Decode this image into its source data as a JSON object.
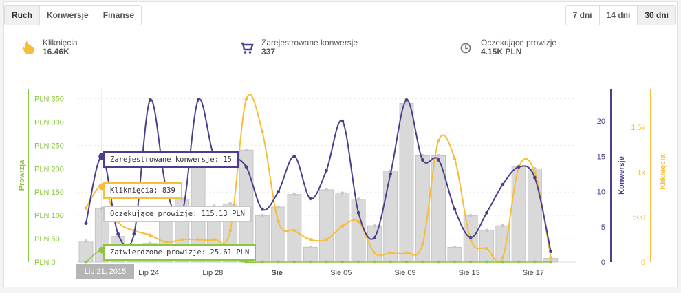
{
  "tabs": {
    "items": [
      {
        "label": "Ruch",
        "active": true
      },
      {
        "label": "Konwersje",
        "active": false
      },
      {
        "label": "Finanse",
        "active": false
      }
    ]
  },
  "ranges": {
    "items": [
      {
        "label": "7 dni",
        "active": false
      },
      {
        "label": "14 dni",
        "active": false
      },
      {
        "label": "30 dni",
        "active": true
      }
    ]
  },
  "stats": {
    "clicks": {
      "label": "Kliknięcia",
      "value": "16.46K",
      "icon": "pointer-hand-icon"
    },
    "conversions": {
      "label": "Zarejestrowane konwersje",
      "value": "337",
      "icon": "shopping-cart-icon"
    },
    "pending": {
      "label": "Oczekujące prowizje",
      "value": "4.15K PLN",
      "icon": "clock-icon"
    }
  },
  "tooltips": {
    "conversions": "Zarejestrowane konwersje: 15",
    "clicks": "Kliknięcia: 839",
    "pending": "Oczekujące prowizje: 115.13 PLN",
    "approved": "Zatwierdzone prowizje: 25.61 PLN"
  },
  "hover_date": "Lip 21, 2015",
  "colors": {
    "green": "#8cc63f",
    "purple": "#4b3f8c",
    "orange": "#f7bd3b",
    "bar": "#d9d9d9",
    "bar_stroke": "#bdbdbd"
  },
  "chart_data": {
    "type": "bar",
    "x_tick_labels": [
      "Lip 24",
      "Lip 28",
      "Sie",
      "Sie 05",
      "Sie 09",
      "Sie 13",
      "Sie 17"
    ],
    "x_ticks_bold": [
      "Sie"
    ],
    "left_axis": {
      "label": "Prowizja",
      "ticks": [
        "PLN 0",
        "PLN 50",
        "PLN 100",
        "PLN 150",
        "PLN 200",
        "PLN 250",
        "PLN 300",
        "PLN 350"
      ],
      "ylim": [
        0,
        370
      ]
    },
    "right_axis_1": {
      "label": "Konwersje",
      "ticks": [
        "0",
        "5",
        "10",
        "15",
        "20"
      ],
      "ylim": [
        0,
        24.5
      ]
    },
    "right_axis_2": {
      "label": "Kliknięcia",
      "ticks": [
        "0",
        "500",
        "1k",
        "1.5k"
      ],
      "ylim": [
        0,
        1920
      ]
    },
    "series": [
      {
        "name": "Oczekujące prowizje",
        "type": "bar",
        "axis": "left",
        "values": [
          45,
          115,
          55,
          30,
          40,
          98,
          135,
          215,
          120,
          125,
          240,
          100,
          118,
          145,
          32,
          155,
          148,
          135,
          78,
          195,
          340,
          228,
          228,
          32,
          100,
          68,
          78,
          205,
          200,
          8
        ]
      },
      {
        "name": "Zarejestrowane konwersje",
        "type": "line",
        "axis": "right_1",
        "values": [
          5.5,
          15,
          4,
          4,
          23,
          10.5,
          7,
          23,
          15,
          15,
          13.5,
          7.5,
          10,
          15,
          9,
          13,
          20,
          7,
          3.5,
          12.5,
          23,
          14.5,
          14.5,
          7.5,
          3.5,
          7,
          11,
          13.5,
          12,
          1.5
        ]
      },
      {
        "name": "Kliknięcia",
        "type": "line",
        "axis": "right_2",
        "values": [
          600,
          839,
          450,
          350,
          300,
          220,
          250,
          250,
          250,
          350,
          1810,
          1450,
          450,
          350,
          250,
          250,
          400,
          450,
          100,
          100,
          100,
          200,
          1350,
          1150,
          250,
          150,
          50,
          1050,
          1000,
          50
        ]
      },
      {
        "name": "Zatwierdzone prowizje",
        "type": "line",
        "axis": "left",
        "values": [
          0,
          25.61,
          5,
          5,
          5,
          5,
          5,
          5,
          5,
          5,
          0,
          0,
          0,
          0,
          0,
          0,
          0,
          0,
          0,
          0,
          0,
          0,
          0,
          0,
          0,
          0,
          0,
          0,
          0,
          0
        ]
      }
    ]
  }
}
